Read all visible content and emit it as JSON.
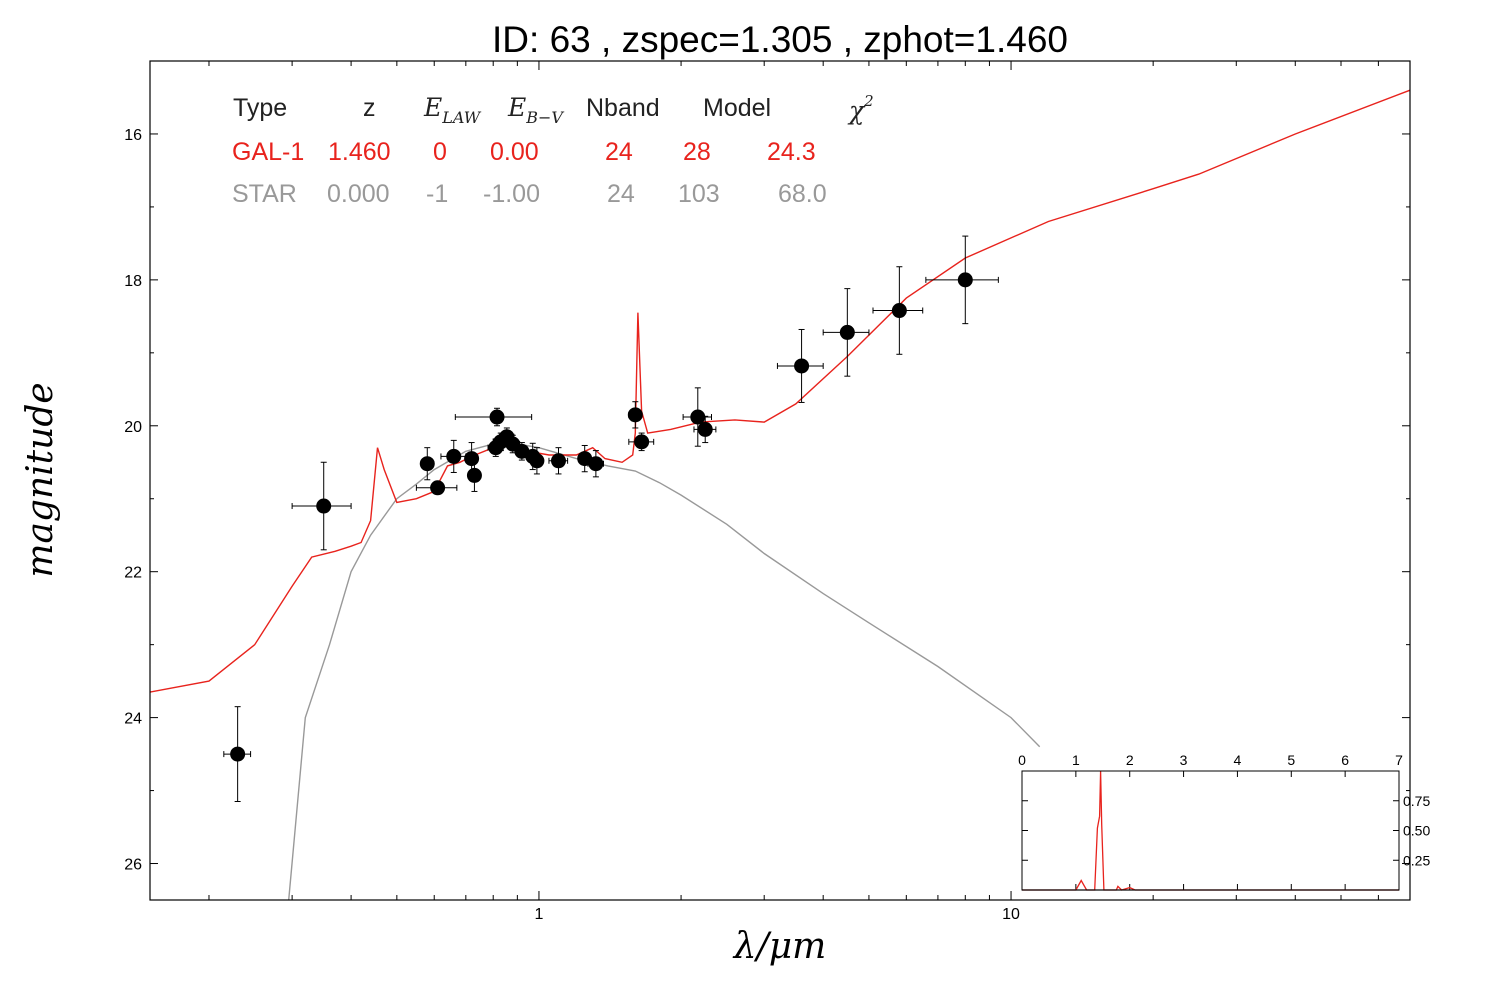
{
  "chart_data": {
    "type": "scatter",
    "title": "ID:  63    , zspec=1.305 , zphot=1.460",
    "xlabel": "λ/μm",
    "ylabel": "magnitude",
    "xscale": "log",
    "xlim": [
      0.15,
      70
    ],
    "ylim": [
      26.5,
      15
    ],
    "y_inverted": true,
    "x_ticks": [
      "1",
      "10"
    ],
    "y_ticks": [
      "16",
      "18",
      "20",
      "22",
      "24",
      "26"
    ],
    "table": {
      "headers": [
        "Type",
        "z",
        "E",
        "LAW",
        "E",
        "B−V",
        "Nband",
        "Model",
        "χ",
        "2"
      ],
      "rows": [
        {
          "color": "#e8231d",
          "cells": [
            "GAL-1",
            "1.460",
            "0",
            "0.00",
            "24",
            "28",
            "24.3"
          ]
        },
        {
          "color": "#999999",
          "cells": [
            "STAR",
            "0.000",
            "-1",
            "-1.00",
            "24",
            "103",
            "68.0"
          ]
        }
      ]
    },
    "series": [
      {
        "name": "GAL-1",
        "color": "#e8231d",
        "points": [
          [
            0.15,
            23.65
          ],
          [
            0.2,
            23.5
          ],
          [
            0.25,
            23.0
          ],
          [
            0.3,
            22.2
          ],
          [
            0.33,
            21.8
          ],
          [
            0.37,
            21.72
          ],
          [
            0.4,
            21.65
          ],
          [
            0.42,
            21.6
          ],
          [
            0.44,
            21.3
          ],
          [
            0.455,
            20.3
          ],
          [
            0.47,
            20.6
          ],
          [
            0.5,
            21.05
          ],
          [
            0.55,
            21.0
          ],
          [
            0.6,
            20.9
          ],
          [
            0.64,
            20.55
          ],
          [
            0.68,
            20.5
          ],
          [
            0.72,
            20.42
          ],
          [
            0.8,
            20.3
          ],
          [
            0.87,
            20.25
          ],
          [
            0.95,
            20.35
          ],
          [
            1.05,
            20.4
          ],
          [
            1.15,
            20.4
          ],
          [
            1.2,
            20.4
          ],
          [
            1.25,
            20.35
          ],
          [
            1.3,
            20.3
          ],
          [
            1.38,
            20.45
          ],
          [
            1.5,
            20.5
          ],
          [
            1.58,
            20.4
          ],
          [
            1.6,
            20.1
          ],
          [
            1.62,
            18.45
          ],
          [
            1.65,
            19.8
          ],
          [
            1.7,
            20.1
          ],
          [
            1.9,
            20.05
          ],
          [
            2.2,
            19.95
          ],
          [
            2.6,
            19.92
          ],
          [
            3.0,
            19.95
          ],
          [
            3.5,
            19.7
          ],
          [
            4.5,
            19.05
          ],
          [
            6.0,
            18.25
          ],
          [
            8.0,
            17.7
          ],
          [
            12.0,
            17.2
          ],
          [
            20.0,
            16.75
          ],
          [
            25.0,
            16.55
          ],
          [
            40.0,
            16.0
          ],
          [
            70.0,
            15.4
          ]
        ]
      },
      {
        "name": "STAR",
        "color": "#999999",
        "points": [
          [
            0.295,
            26.5
          ],
          [
            0.32,
            24.0
          ],
          [
            0.36,
            23.0
          ],
          [
            0.4,
            22.0
          ],
          [
            0.44,
            21.5
          ],
          [
            0.5,
            21.0
          ],
          [
            0.55,
            20.8
          ],
          [
            0.6,
            20.6
          ],
          [
            0.7,
            20.35
          ],
          [
            0.8,
            20.25
          ],
          [
            0.9,
            20.25
          ],
          [
            1.0,
            20.3
          ],
          [
            1.2,
            20.45
          ],
          [
            1.4,
            20.55
          ],
          [
            1.6,
            20.62
          ],
          [
            1.8,
            20.78
          ],
          [
            2.0,
            20.95
          ],
          [
            2.5,
            21.35
          ],
          [
            3.0,
            21.75
          ],
          [
            4.0,
            22.3
          ],
          [
            5.0,
            22.7
          ],
          [
            7.0,
            23.3
          ],
          [
            10.0,
            24.0
          ],
          [
            11.5,
            24.4
          ]
        ]
      }
    ],
    "observations": [
      {
        "x": 0.23,
        "y": 24.5,
        "xerr": 0.015,
        "yerr": 0.65
      },
      {
        "x": 0.35,
        "y": 21.1,
        "xerr": 0.05,
        "yerr": 0.6
      },
      {
        "x": 0.58,
        "y": 20.52,
        "xerr": 0.012,
        "yerr": 0.22
      },
      {
        "x": 0.61,
        "y": 20.85,
        "xerr": 0.06,
        "yerr": 0.06
      },
      {
        "x": 0.66,
        "y": 20.42,
        "xerr": 0.04,
        "yerr": 0.22
      },
      {
        "x": 0.72,
        "y": 20.45,
        "xerr": 0.015,
        "yerr": 0.22
      },
      {
        "x": 0.73,
        "y": 20.68,
        "xerr": 0.015,
        "yerr": 0.22
      },
      {
        "x": 0.81,
        "y": 20.3,
        "xerr": 0.03,
        "yerr": 0.12
      },
      {
        "x": 0.83,
        "y": 20.22,
        "xerr": 0.03,
        "yerr": 0.12
      },
      {
        "x": 0.855,
        "y": 20.15,
        "xerr": 0.03,
        "yerr": 0.12
      },
      {
        "x": 0.88,
        "y": 20.25,
        "xerr": 0.03,
        "yerr": 0.12
      },
      {
        "x": 0.92,
        "y": 20.35,
        "xerr": 0.02,
        "yerr": 0.12
      },
      {
        "x": 0.815,
        "y": 19.88,
        "xerr": 0.15,
        "yerr": 0.12
      },
      {
        "x": 0.97,
        "y": 20.42,
        "xerr": 0.03,
        "yerr": 0.18
      },
      {
        "x": 0.99,
        "y": 20.48,
        "xerr": 0.03,
        "yerr": 0.18
      },
      {
        "x": 1.1,
        "y": 20.48,
        "xerr": 0.05,
        "yerr": 0.18
      },
      {
        "x": 1.25,
        "y": 20.45,
        "xerr": 0.03,
        "yerr": 0.18
      },
      {
        "x": 1.32,
        "y": 20.52,
        "xerr": 0.05,
        "yerr": 0.18
      },
      {
        "x": 1.6,
        "y": 19.85,
        "xerr": 0.05,
        "yerr": 0.18
      },
      {
        "x": 1.65,
        "y": 20.22,
        "xerr": 0.1,
        "yerr": 0.12
      },
      {
        "x": 2.17,
        "y": 19.88,
        "xerr": 0.15,
        "yerr": 0.4
      },
      {
        "x": 2.25,
        "y": 20.05,
        "xerr": 0.12,
        "yerr": 0.18
      },
      {
        "x": 3.6,
        "y": 19.18,
        "xerr": 0.4,
        "yerr": 0.5
      },
      {
        "x": 4.5,
        "y": 18.72,
        "xerr": 0.5,
        "yerr": 0.6
      },
      {
        "x": 5.8,
        "y": 18.42,
        "xerr": 0.7,
        "yerr": 0.6
      },
      {
        "x": 8.0,
        "y": 18.0,
        "xerr": 1.4,
        "yerr": 0.6
      }
    ],
    "inset": {
      "type": "line",
      "xlim": [
        0,
        7
      ],
      "ylim": [
        0,
        1.0
      ],
      "x_ticks": [
        "0",
        "1",
        "2",
        "3",
        "4",
        "5",
        "6",
        "7"
      ],
      "y_ticks": [
        "0.25",
        "0.50",
        "0.75"
      ],
      "series": [
        {
          "color": "#e8231d",
          "points": [
            [
              0,
              0
            ],
            [
              1.0,
              0
            ],
            [
              1.1,
              0.08
            ],
            [
              1.2,
              0
            ],
            [
              1.35,
              0
            ],
            [
              1.4,
              0.52
            ],
            [
              1.44,
              0.62
            ],
            [
              1.46,
              1.0
            ],
            [
              1.48,
              0.55
            ],
            [
              1.52,
              0
            ],
            [
              1.75,
              0
            ],
            [
              1.78,
              0.03
            ],
            [
              1.85,
              0
            ],
            [
              2.0,
              0.02
            ],
            [
              2.1,
              0
            ],
            [
              7,
              0
            ]
          ]
        },
        {
          "color": "#333333",
          "points": [
            [
              0,
              0
            ],
            [
              7,
              0
            ]
          ]
        }
      ]
    }
  }
}
